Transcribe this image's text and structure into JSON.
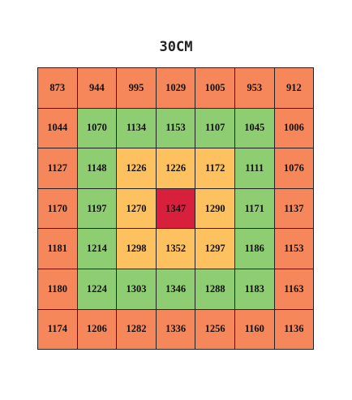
{
  "title": "30CM",
  "table": {
    "rows": [
      [
        873,
        944,
        995,
        1029,
        1005,
        953,
        912
      ],
      [
        1044,
        1070,
        1134,
        1153,
        1107,
        1045,
        1006
      ],
      [
        1127,
        1148,
        1226,
        1226,
        1172,
        1111,
        1076
      ],
      [
        1170,
        1197,
        1270,
        1347,
        1290,
        1171,
        1137
      ],
      [
        1181,
        1214,
        1298,
        1352,
        1297,
        1186,
        1153
      ],
      [
        1180,
        1224,
        1303,
        1346,
        1288,
        1183,
        1163
      ],
      [
        1174,
        1206,
        1282,
        1336,
        1256,
        1160,
        1136
      ]
    ]
  }
}
